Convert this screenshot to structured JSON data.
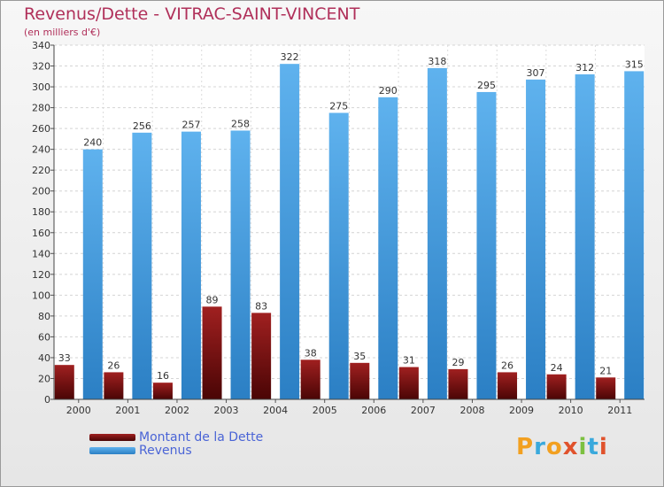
{
  "title": "Revenus/Dette - VITRAC-SAINT-VINCENT",
  "subtitle": "(en milliers d'€)",
  "legend": {
    "debt_label": "Montant de la Dette",
    "revenue_label": "Revenus"
  },
  "logo_text": "Proxiti",
  "colors": {
    "title": "#b0305a",
    "debt": "#7a1010",
    "revenue": "#3d98dd",
    "legend_text": "#4a64d6"
  },
  "chart_data": {
    "type": "bar",
    "categories": [
      "2000",
      "2001",
      "2002",
      "2003",
      "2004",
      "2005",
      "2006",
      "2007",
      "2008",
      "2009",
      "2010",
      "2011"
    ],
    "series": [
      {
        "name": "Montant de la Dette",
        "values": [
          33,
          26,
          16,
          89,
          83,
          38,
          35,
          31,
          29,
          26,
          24,
          21
        ]
      },
      {
        "name": "Revenus",
        "values": [
          240,
          256,
          257,
          258,
          322,
          275,
          290,
          318,
          295,
          307,
          312,
          315
        ]
      }
    ],
    "ylim": [
      0,
      340
    ],
    "yticks": [
      0,
      20,
      40,
      60,
      80,
      100,
      120,
      140,
      160,
      180,
      200,
      220,
      240,
      260,
      280,
      300,
      320,
      340
    ],
    "grid": true
  }
}
